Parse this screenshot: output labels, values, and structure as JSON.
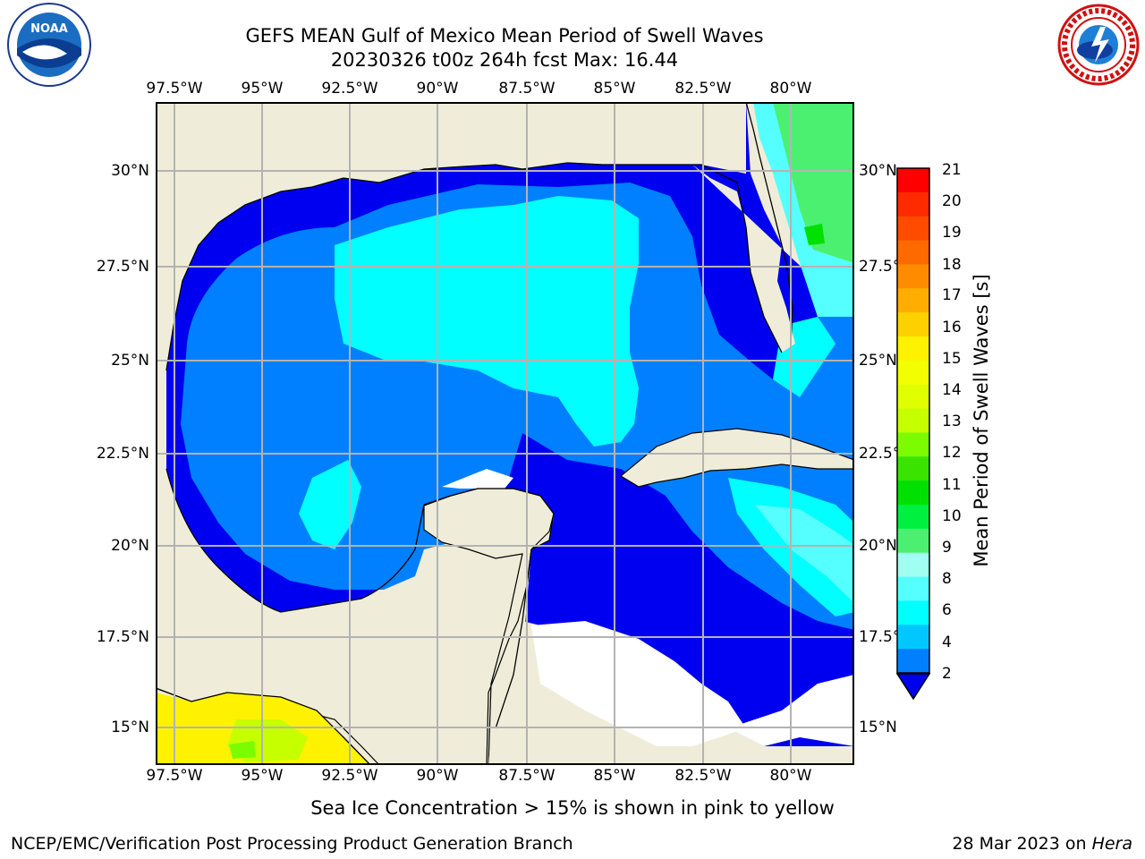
{
  "header": {
    "title_line1": "GEFS MEAN Gulf of Mexico Mean Period of Swell Waves",
    "title_line2": "20230326 t00z 264h fcst   Max: 16.44"
  },
  "logos": {
    "left": {
      "icon": "noaa-logo",
      "text": "NOAA"
    },
    "right": {
      "icon": "national-weather-service-logo",
      "text": "NATIONAL WEATHER SERVICE"
    }
  },
  "map": {
    "lon_labels": [
      "97.5°W",
      "95°W",
      "92.5°W",
      "90°W",
      "87.5°W",
      "85°W",
      "82.5°W",
      "80°W"
    ],
    "lat_labels_left": [
      "30°N",
      "27.5°N",
      "25°N",
      "22.5°N",
      "20°N",
      "17.5°N",
      "15°N"
    ],
    "lat_labels_right": [
      "30°N",
      "27.5°N",
      "25°N",
      "22.5°N",
      "20°N",
      "17.5°N",
      "15°N"
    ],
    "colors": {
      "land": "#efedd9",
      "grid": "#b3b3b3",
      "coast": "#000000"
    }
  },
  "colorbar": {
    "label": "Mean Period of Swell Waves [s]",
    "ticks": [
      "21",
      "20",
      "19",
      "18",
      "17",
      "16",
      "15",
      "14",
      "13",
      "12",
      "11",
      "10",
      "9",
      "8",
      "6",
      "4",
      "2"
    ],
    "colors_top_to_bottom": [
      "#ff0000",
      "#ff2a00",
      "#ff4b00",
      "#ff6a00",
      "#ff8c00",
      "#ffae00",
      "#ffd000",
      "#fff200",
      "#f3ff00",
      "#e0ff00",
      "#c6ff00",
      "#7cfc00",
      "#3ae400",
      "#00e000",
      "#00f040",
      "#4cf070",
      "#a0fff0",
      "#55ffff",
      "#00ffff",
      "#00c8ff",
      "#0080ff"
    ],
    "extend_color": "#0000f0"
  },
  "footer": {
    "ice_note": "Sea Ice Concentration > 15% is shown in pink to yellow",
    "left": "NCEP/EMC/Verification Post Processing Product Generation Branch",
    "right_date": "28 Mar 2023 on ",
    "right_host": "Hera"
  }
}
